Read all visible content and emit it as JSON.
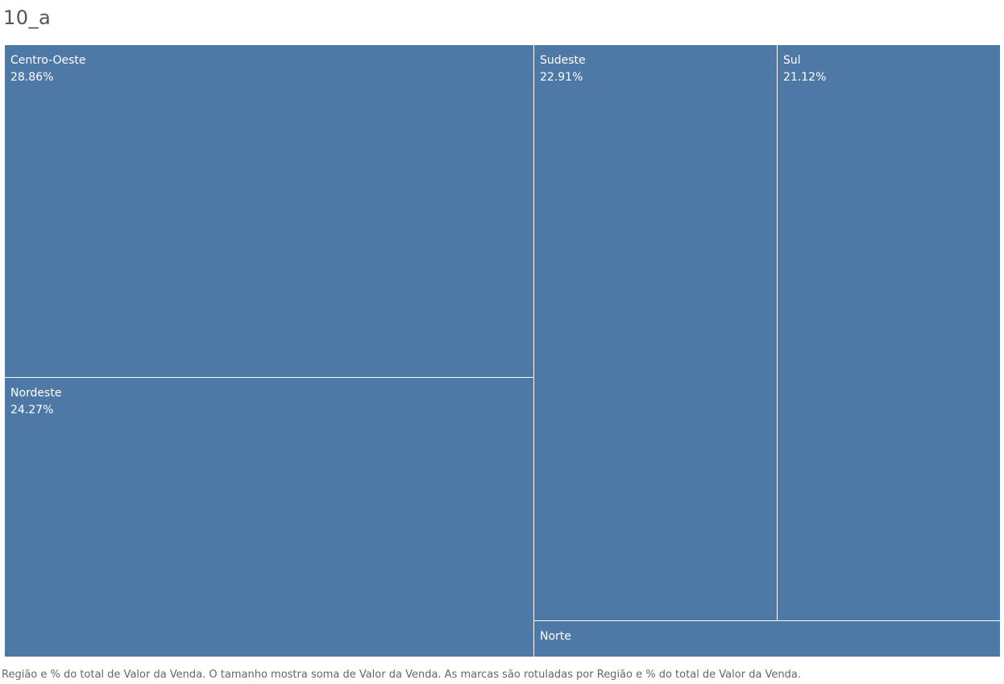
{
  "title": "10_a",
  "caption": "Região e % do total de Valor da Venda.  O tamanho mostra soma de Valor da Venda.  As marcas são rotuladas por Região e % do total de Valor da Venda.",
  "chart_data": {
    "type": "treemap",
    "title": "10_a",
    "measure": "% do total de Valor da Venda",
    "color": "#4e79a7",
    "items": [
      {
        "name": "Centro-Oeste",
        "label": "28.86%",
        "value": 28.86
      },
      {
        "name": "Nordeste",
        "label": "24.27%",
        "value": 24.27
      },
      {
        "name": "Sudeste",
        "label": "22.91%",
        "value": 22.91
      },
      {
        "name": "Sul",
        "label": "21.12%",
        "value": 21.12
      },
      {
        "name": "Norte",
        "label": "",
        "value": 2.84
      }
    ]
  }
}
